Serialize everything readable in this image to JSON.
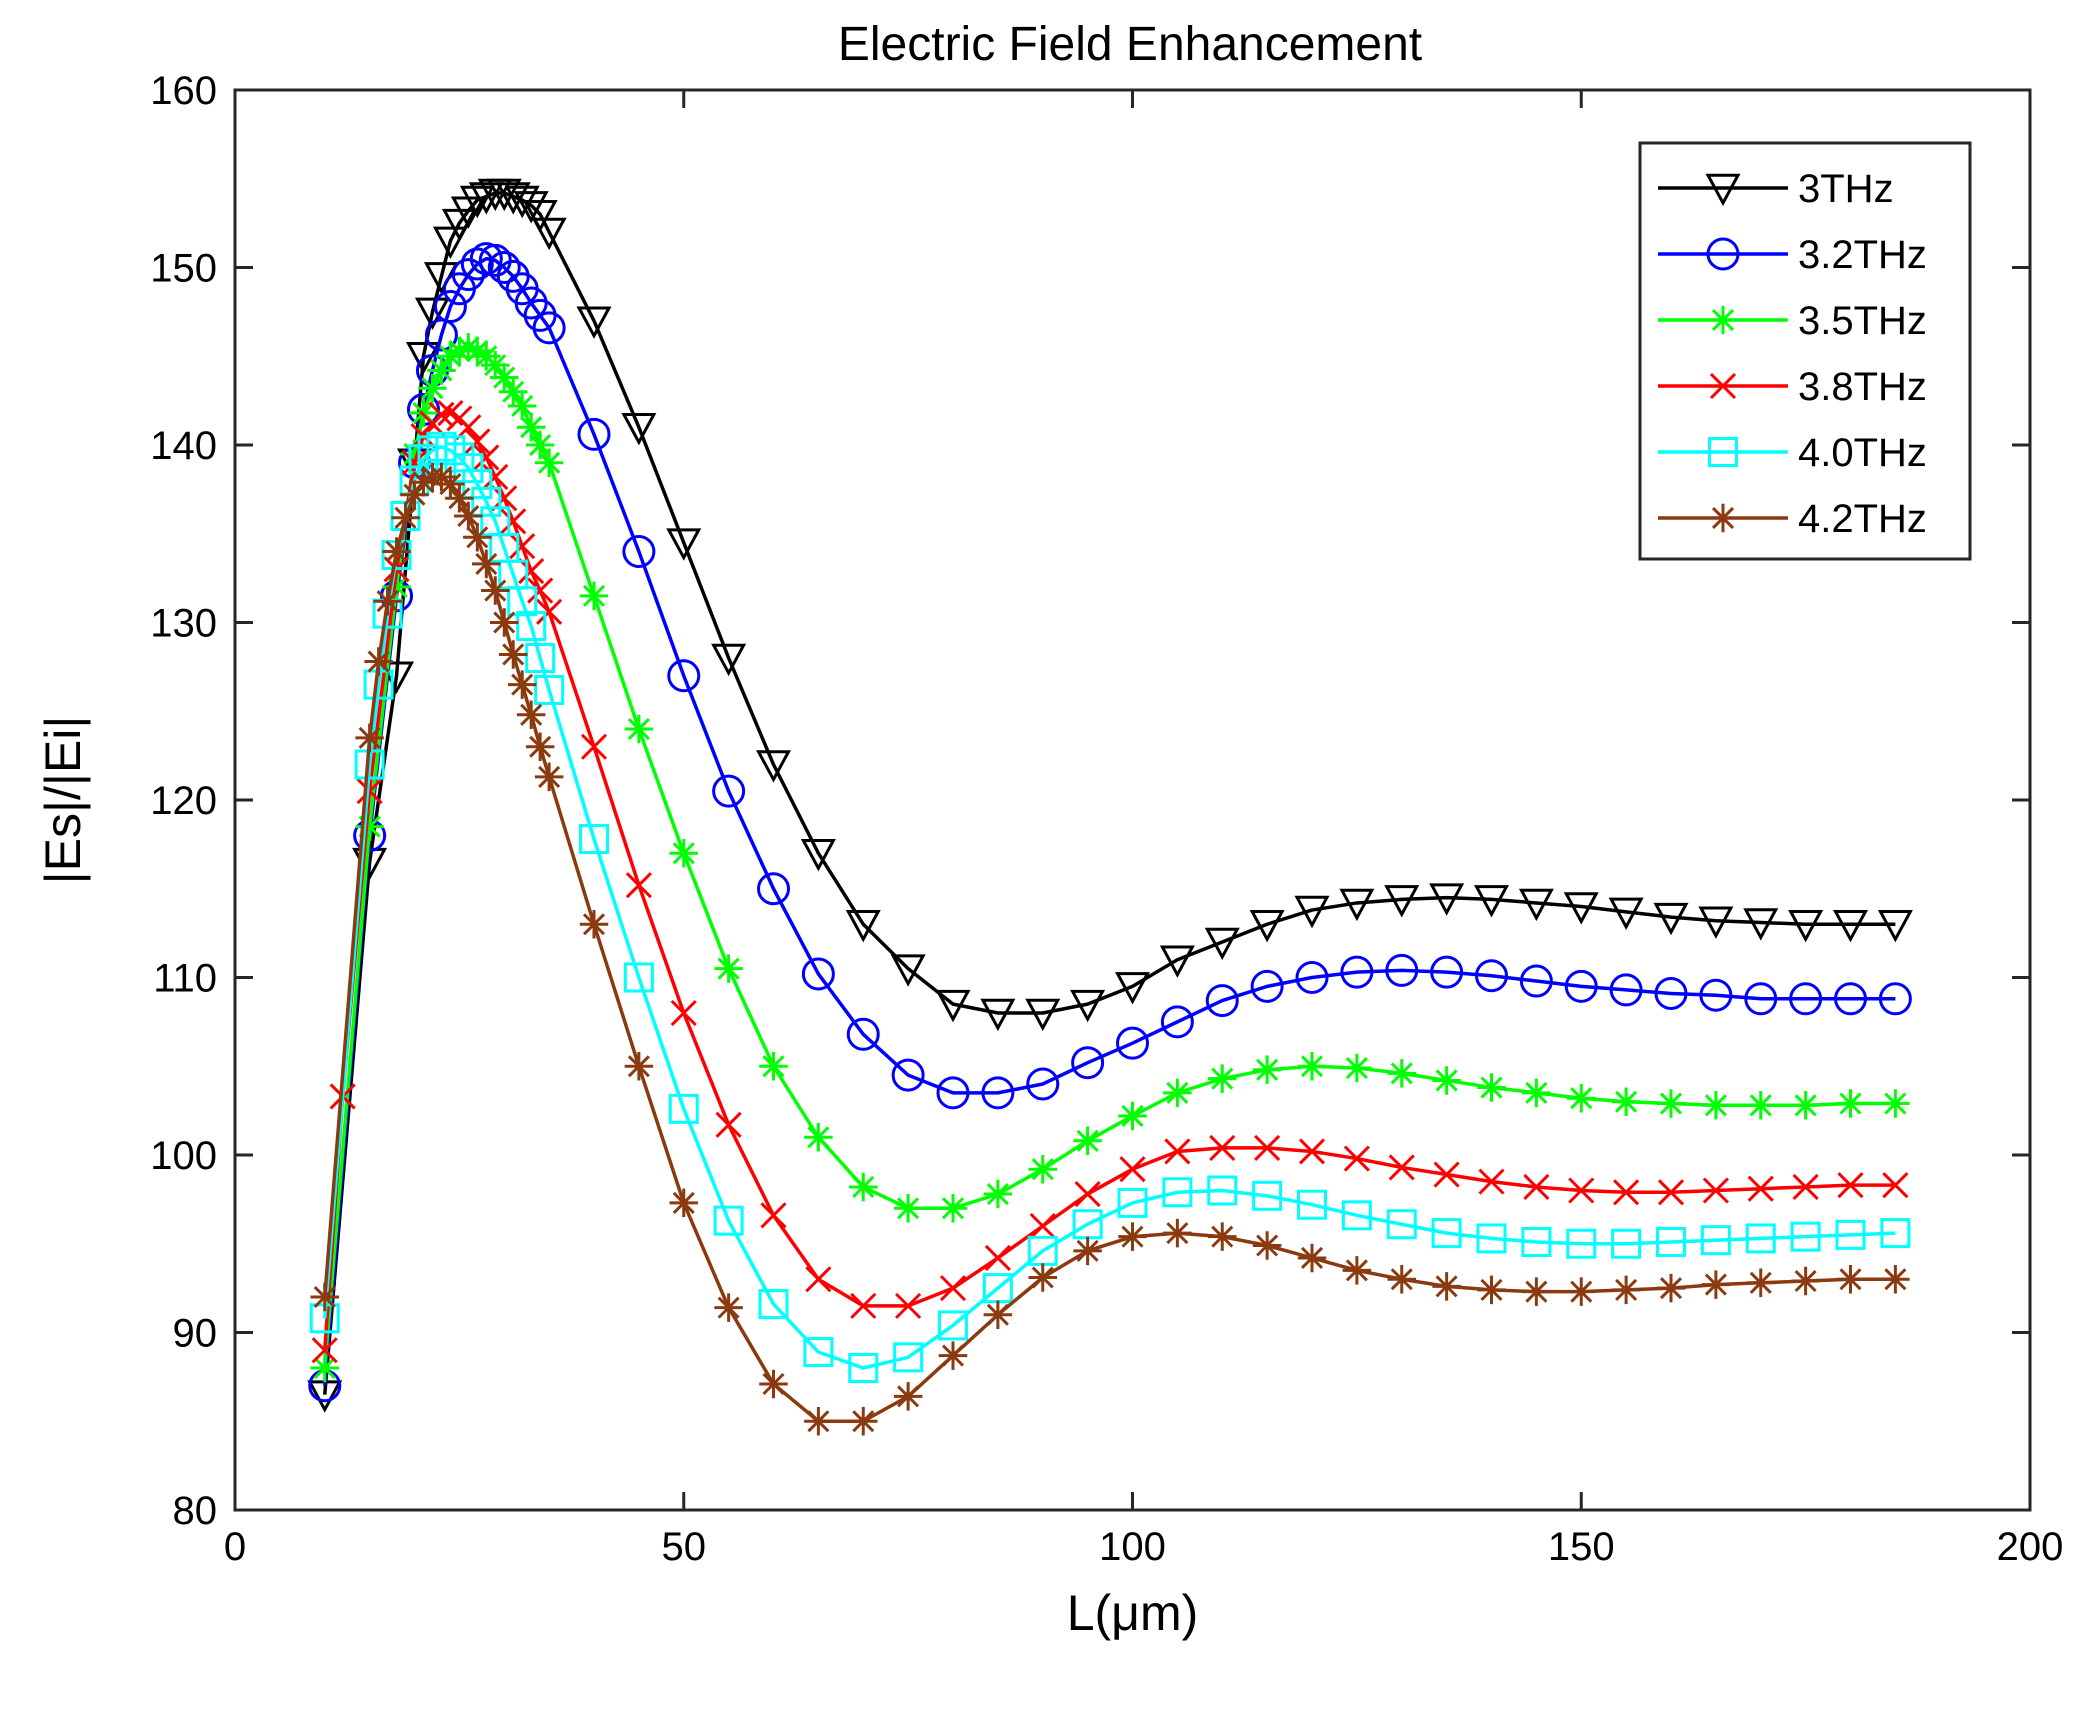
{
  "chart_data": {
    "type": "line",
    "title": "Electric Field Enhancement",
    "xlabel": "L(μm)",
    "ylabel": "|Es|/|Ei|",
    "xlim": [
      0,
      200
    ],
    "ylim": [
      80,
      160
    ],
    "xticks": [
      0,
      50,
      100,
      150,
      200
    ],
    "yticks": [
      80,
      90,
      100,
      110,
      120,
      130,
      140,
      150,
      160
    ],
    "grid": false,
    "legend_position": "top-right",
    "series": [
      {
        "name": "3THz",
        "color": "#000000",
        "marker": "triangle-down",
        "x": [
          10,
          15,
          18,
          20,
          21,
          22,
          23,
          24,
          25,
          26,
          27,
          28,
          29,
          30,
          31,
          32,
          33,
          34,
          35,
          40,
          45,
          50,
          55,
          60,
          65,
          70,
          75,
          80,
          85,
          90,
          95,
          100,
          105,
          110,
          115,
          120,
          125,
          130,
          135,
          140,
          145,
          150,
          155,
          160,
          165,
          170,
          175,
          180,
          185
        ],
        "y": [
          86.5,
          116.5,
          127,
          139,
          145,
          147.5,
          149.5,
          151.5,
          152.5,
          153.2,
          153.8,
          154,
          154.2,
          154.2,
          154,
          153.8,
          153.5,
          153,
          152,
          147,
          141,
          134.5,
          128,
          122,
          117,
          113,
          110.5,
          108.5,
          108,
          108,
          108.5,
          109.5,
          111,
          112,
          113,
          113.8,
          114.2,
          114.4,
          114.5,
          114.4,
          114.2,
          114,
          113.7,
          113.4,
          113.2,
          113.1,
          113,
          113,
          113
        ]
      },
      {
        "name": "3.2THz",
        "color": "#0000ff",
        "marker": "circle",
        "x": [
          10,
          15,
          18,
          20,
          21,
          22,
          23,
          24,
          25,
          26,
          27,
          28,
          29,
          30,
          31,
          32,
          33,
          34,
          35,
          40,
          45,
          50,
          55,
          60,
          65,
          70,
          75,
          80,
          85,
          90,
          95,
          100,
          105,
          110,
          115,
          120,
          125,
          130,
          135,
          140,
          145,
          150,
          155,
          160,
          165,
          170,
          175,
          180,
          185
        ],
        "y": [
          87,
          118,
          131.5,
          139,
          142,
          144.2,
          146.2,
          147.8,
          148.8,
          149.6,
          150.2,
          150.5,
          150.4,
          150,
          149.5,
          148.8,
          148,
          147.3,
          146.6,
          140.6,
          134,
          127,
          120.5,
          115,
          110.2,
          106.8,
          104.5,
          103.5,
          103.5,
          104,
          105.2,
          106.3,
          107.5,
          108.7,
          109.5,
          110,
          110.3,
          110.4,
          110.3,
          110.1,
          109.8,
          109.5,
          109.3,
          109.1,
          109,
          108.8,
          108.8,
          108.8,
          108.8
        ]
      },
      {
        "name": "3.5THz",
        "color": "#00ff00",
        "marker": "asterisk",
        "x": [
          10,
          15,
          18,
          20,
          21,
          22,
          23,
          24,
          25,
          26,
          27,
          28,
          29,
          30,
          31,
          32,
          33,
          34,
          35,
          40,
          45,
          50,
          55,
          60,
          65,
          70,
          75,
          80,
          85,
          90,
          95,
          100,
          105,
          110,
          115,
          120,
          125,
          130,
          135,
          140,
          145,
          150,
          155,
          160,
          165,
          170,
          175,
          180,
          185
        ],
        "y": [
          88,
          118.5,
          132,
          139.5,
          141.8,
          143.2,
          144.2,
          145,
          145.3,
          145.5,
          145.3,
          145,
          144.5,
          143.8,
          143,
          142.2,
          141,
          140,
          139,
          131.5,
          124,
          117,
          110.5,
          105,
          101,
          98.2,
          97,
          97,
          97.8,
          99.2,
          100.8,
          102.2,
          103.5,
          104.3,
          104.8,
          105,
          104.9,
          104.6,
          104.2,
          103.8,
          103.5,
          103.2,
          103,
          102.9,
          102.8,
          102.8,
          102.8,
          102.9,
          102.9
        ]
      },
      {
        "name": "3.8THz",
        "color": "#ff0000",
        "marker": "cross",
        "x": [
          10,
          12,
          15,
          18,
          20,
          21,
          22,
          23,
          24,
          25,
          26,
          27,
          28,
          29,
          30,
          31,
          32,
          33,
          34,
          35,
          40,
          45,
          50,
          55,
          60,
          65,
          70,
          75,
          80,
          85,
          90,
          95,
          100,
          105,
          110,
          115,
          120,
          125,
          130,
          135,
          140,
          145,
          150,
          155,
          160,
          165,
          170,
          175,
          180,
          185
        ],
        "y": [
          89,
          103.3,
          120.5,
          133,
          139,
          140.5,
          141.2,
          141.7,
          141.8,
          141.5,
          141,
          140.2,
          139.3,
          138.2,
          137,
          135.7,
          134.3,
          132.9,
          131.8,
          130.6,
          123,
          115.2,
          108,
          101.7,
          96.6,
          93,
          91.5,
          91.5,
          92.5,
          94.2,
          96,
          97.8,
          99.2,
          100.2,
          100.4,
          100.4,
          100.2,
          99.8,
          99.3,
          98.9,
          98.5,
          98.2,
          98,
          97.9,
          97.9,
          98,
          98.1,
          98.2,
          98.3,
          98.3
        ]
      },
      {
        "name": "4.0THz",
        "color": "#00ffff",
        "marker": "square",
        "x": [
          10,
          15,
          16,
          17,
          18,
          19,
          20,
          21,
          22,
          23,
          24,
          25,
          26,
          27,
          28,
          29,
          30,
          31,
          32,
          33,
          34,
          35,
          40,
          45,
          50,
          55,
          60,
          65,
          70,
          75,
          80,
          85,
          90,
          95,
          100,
          105,
          110,
          115,
          120,
          125,
          130,
          135,
          140,
          145,
          150,
          155,
          160,
          165,
          170,
          175,
          180,
          185
        ],
        "y": [
          90.8,
          122,
          126.5,
          130.5,
          133.8,
          136,
          138,
          139.2,
          139.7,
          139.9,
          139.7,
          139.3,
          138.7,
          137.8,
          136.8,
          135.7,
          134.2,
          132.7,
          131.2,
          129.8,
          128,
          126.2,
          117.8,
          110,
          102.6,
          96.3,
          91.6,
          88.9,
          88,
          88.6,
          90.4,
          92.5,
          94.6,
          96.1,
          97.3,
          97.9,
          98,
          97.7,
          97.2,
          96.6,
          96.1,
          95.6,
          95.3,
          95.1,
          95,
          95,
          95.1,
          95.2,
          95.3,
          95.4,
          95.5,
          95.6
        ]
      },
      {
        "name": "4.2THz",
        "color": "#8b3a0f",
        "marker": "asterisk",
        "x": [
          10,
          15,
          16,
          17,
          18,
          19,
          20,
          21,
          22,
          23,
          24,
          25,
          26,
          27,
          28,
          29,
          30,
          31,
          32,
          33,
          34,
          35,
          40,
          45,
          50,
          55,
          60,
          65,
          70,
          75,
          80,
          85,
          90,
          95,
          100,
          105,
          110,
          115,
          120,
          125,
          130,
          135,
          140,
          145,
          150,
          155,
          160,
          165,
          170,
          175,
          180,
          185
        ],
        "y": [
          92,
          123.5,
          127.8,
          131.2,
          134,
          135.9,
          137.2,
          137.9,
          138.2,
          138.2,
          137.8,
          137,
          136,
          134.8,
          133.3,
          131.8,
          130,
          128.2,
          126.5,
          124.8,
          123,
          121.3,
          113,
          105,
          97.3,
          91.4,
          87.1,
          85,
          85,
          86.4,
          88.7,
          91,
          93.1,
          94.6,
          95.4,
          95.6,
          95.4,
          94.9,
          94.2,
          93.5,
          93,
          92.6,
          92.4,
          92.3,
          92.3,
          92.4,
          92.5,
          92.7,
          92.8,
          92.9,
          93,
          93
        ]
      }
    ]
  }
}
